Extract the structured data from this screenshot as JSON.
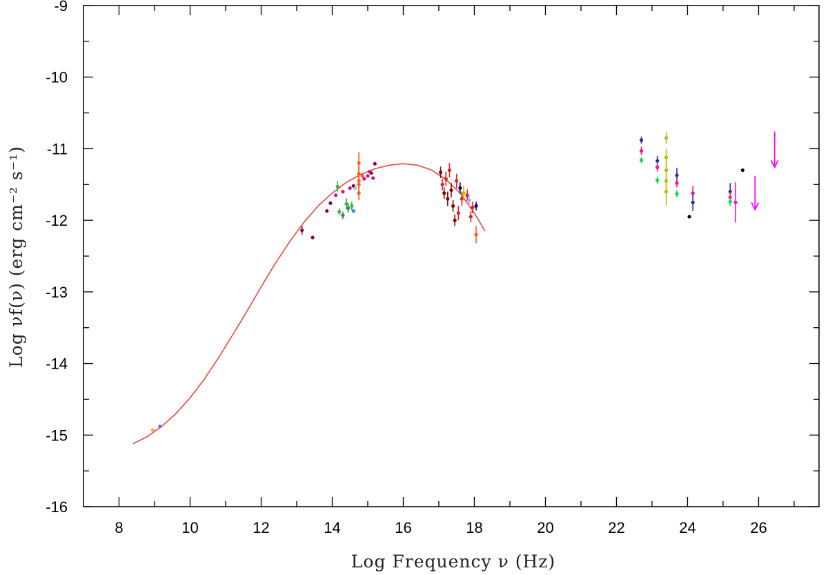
{
  "chart_data": {
    "type": "scatter",
    "xlabel": "Log Frequency ν (Hz)",
    "ylabel": "Log νf(ν) (erg cm⁻² s⁻¹)",
    "xlim": [
      7,
      27.7
    ],
    "ylim": [
      -16,
      -9
    ],
    "x_ticks": [
      "8",
      "10",
      "12",
      "14",
      "16",
      "18",
      "20",
      "22",
      "24",
      "26"
    ],
    "y_ticks": [
      "-9",
      "-10",
      "-11",
      "-12",
      "-13",
      "-14",
      "-15",
      "-16"
    ],
    "grid": false,
    "model_color": "#e8483c",
    "model_curve": [
      [
        8.4,
        -15.12
      ],
      [
        8.8,
        -15.02
      ],
      [
        9.2,
        -14.88
      ],
      [
        9.6,
        -14.7
      ],
      [
        10.0,
        -14.48
      ],
      [
        10.4,
        -14.22
      ],
      [
        10.8,
        -13.92
      ],
      [
        11.2,
        -13.6
      ],
      [
        11.6,
        -13.27
      ],
      [
        12.0,
        -12.93
      ],
      [
        12.4,
        -12.6
      ],
      [
        12.8,
        -12.3
      ],
      [
        13.2,
        -12.03
      ],
      [
        13.6,
        -11.8
      ],
      [
        14.0,
        -11.62
      ],
      [
        14.4,
        -11.47
      ],
      [
        14.8,
        -11.36
      ],
      [
        15.2,
        -11.28
      ],
      [
        15.6,
        -11.23
      ],
      [
        16.0,
        -11.21
      ],
      [
        16.4,
        -11.23
      ],
      [
        16.8,
        -11.3
      ],
      [
        17.2,
        -11.43
      ],
      [
        17.6,
        -11.62
      ],
      [
        18.0,
        -11.9
      ],
      [
        18.3,
        -12.15
      ]
    ],
    "points": [
      {
        "x": 8.95,
        "y": -14.93,
        "color": "#f4a460"
      },
      {
        "x": 9.15,
        "y": -14.88,
        "color": "#7b68ee"
      },
      {
        "x": 13.15,
        "y": -12.14,
        "err": 0.06,
        "color": "#8b004b"
      },
      {
        "x": 13.45,
        "y": -12.24,
        "color": "#8b004b"
      },
      {
        "x": 13.85,
        "y": -11.87,
        "color": "#8b004b"
      },
      {
        "x": 13.95,
        "y": -11.76,
        "color": "#8b004b"
      },
      {
        "x": 14.1,
        "y": -11.65,
        "color": "#c71585"
      },
      {
        "x": 14.3,
        "y": -11.6,
        "color": "#c71585"
      },
      {
        "x": 14.5,
        "y": -11.55,
        "color": "#c71585"
      },
      {
        "x": 14.6,
        "y": -11.52,
        "color": "#8b004b"
      },
      {
        "x": 14.9,
        "y": -11.42,
        "color": "#c71585"
      },
      {
        "x": 15.0,
        "y": -11.38,
        "color": "#c71585"
      },
      {
        "x": 15.1,
        "y": -11.34,
        "color": "#8b004b"
      },
      {
        "x": 15.2,
        "y": -11.21,
        "color": "#8b004b"
      },
      {
        "x": 15.15,
        "y": -11.41,
        "color": "#c71585"
      },
      {
        "x": 15.05,
        "y": -11.32,
        "color": "#c71585"
      },
      {
        "x": 14.15,
        "y": -11.53,
        "err": 0.08,
        "color": "#3cb34a"
      },
      {
        "x": 14.2,
        "y": -11.88,
        "err": 0.05,
        "color": "#3cb34a"
      },
      {
        "x": 14.3,
        "y": -11.93,
        "err": 0.05,
        "color": "#2e8b57"
      },
      {
        "x": 14.4,
        "y": -11.77,
        "err": 0.08,
        "color": "#3cb34a"
      },
      {
        "x": 14.45,
        "y": -11.83,
        "err": 0.06,
        "color": "#2e8b57"
      },
      {
        "x": 14.55,
        "y": -11.8,
        "err": 0.06,
        "color": "#3cb34a"
      },
      {
        "x": 14.6,
        "y": -11.87,
        "color": "#1e90ff"
      },
      {
        "x": 14.65,
        "y": -11.55,
        "color": "#87ceeb"
      },
      {
        "x": 14.75,
        "y": -11.2,
        "err": 0.15,
        "color": "#ff5a1f"
      },
      {
        "x": 14.75,
        "y": -11.35,
        "err": 0.12,
        "color": "#ff5a1f"
      },
      {
        "x": 14.75,
        "y": -11.5,
        "err": 0.12,
        "color": "#ff5a1f"
      },
      {
        "x": 14.75,
        "y": -11.62,
        "err": 0.1,
        "color": "#ff5a1f"
      },
      {
        "x": 14.75,
        "y": -11.45,
        "err": 0.1,
        "color": "#ff5a1f"
      },
      {
        "x": 14.85,
        "y": -11.38,
        "color": "#ff5a1f"
      },
      {
        "x": 17.05,
        "y": -11.33,
        "err": 0.08,
        "color": "#8b0000"
      },
      {
        "x": 17.1,
        "y": -11.5,
        "err": 0.08,
        "color": "#e02020"
      },
      {
        "x": 17.15,
        "y": -11.62,
        "err": 0.08,
        "color": "#8b0000"
      },
      {
        "x": 17.2,
        "y": -11.42,
        "err": 0.1,
        "color": "#e02020"
      },
      {
        "x": 17.25,
        "y": -11.7,
        "err": 0.1,
        "color": "#8b0000"
      },
      {
        "x": 17.3,
        "y": -11.3,
        "err": 0.1,
        "color": "#e02020"
      },
      {
        "x": 17.35,
        "y": -11.58,
        "err": 0.1,
        "color": "#8b0000"
      },
      {
        "x": 17.4,
        "y": -11.8,
        "err": 0.08,
        "color": "#8b0000"
      },
      {
        "x": 17.45,
        "y": -12.0,
        "err": 0.08,
        "color": "#8b0000"
      },
      {
        "x": 17.5,
        "y": -11.45,
        "err": 0.1,
        "color": "#e02020"
      },
      {
        "x": 17.55,
        "y": -11.9,
        "err": 0.1,
        "color": "#e02020"
      },
      {
        "x": 17.6,
        "y": -11.55,
        "err": 0.08,
        "color": "#000080"
      },
      {
        "x": 17.65,
        "y": -11.7,
        "err": 0.1,
        "color": "#e02020"
      },
      {
        "x": 17.7,
        "y": -11.62,
        "err": 0.1,
        "color": "#c0c000"
      },
      {
        "x": 17.8,
        "y": -11.65,
        "err": 0.08,
        "color": "#e02020"
      },
      {
        "x": 17.85,
        "y": -11.72,
        "err": 0.08,
        "color": "#b0a0ff"
      },
      {
        "x": 17.9,
        "y": -11.95,
        "err": 0.08,
        "color": "#e02020"
      },
      {
        "x": 17.95,
        "y": -11.82,
        "err": 0.08,
        "color": "#e02020"
      },
      {
        "x": 18.05,
        "y": -11.8,
        "err": 0.06,
        "color": "#000080"
      },
      {
        "x": 18.05,
        "y": -12.2,
        "err": 0.12,
        "color": "#ff5a1f"
      },
      {
        "x": 22.7,
        "y": -10.88,
        "err": 0.05,
        "color": "#2a2aa0"
      },
      {
        "x": 22.7,
        "y": -11.03,
        "err": 0.06,
        "color": "#ff1080"
      },
      {
        "x": 22.7,
        "y": -11.16,
        "err": 0.04,
        "color": "#00e040"
      },
      {
        "x": 23.15,
        "y": -11.17,
        "err": 0.07,
        "color": "#2a2aa0"
      },
      {
        "x": 23.15,
        "y": -11.26,
        "err": 0.06,
        "color": "#ff1080"
      },
      {
        "x": 23.15,
        "y": -11.44,
        "err": 0.05,
        "color": "#00e040"
      },
      {
        "x": 23.4,
        "y": -10.85,
        "err": 0.08,
        "color": "#b5c100"
      },
      {
        "x": 23.4,
        "y": -11.12,
        "err": 0.12,
        "color": "#b5c100"
      },
      {
        "x": 23.4,
        "y": -11.3,
        "err": 0.15,
        "color": "#b5c100"
      },
      {
        "x": 23.4,
        "y": -11.45,
        "err": 0.15,
        "color": "#b5c100"
      },
      {
        "x": 23.4,
        "y": -11.6,
        "err": 0.2,
        "color": "#b5c100"
      },
      {
        "x": 23.7,
        "y": -11.37,
        "err": 0.1,
        "color": "#2a2aa0"
      },
      {
        "x": 23.7,
        "y": -11.48,
        "err": 0.06,
        "color": "#ff1080"
      },
      {
        "x": 23.7,
        "y": -11.63,
        "err": 0.05,
        "color": "#00e040"
      },
      {
        "x": 24.05,
        "y": -11.95,
        "color": "#000000"
      },
      {
        "x": 24.15,
        "y": -11.62,
        "err": 0.1,
        "color": "#ff1080"
      },
      {
        "x": 24.15,
        "y": -11.75,
        "err": 0.12,
        "color": "#2a2aa0"
      },
      {
        "x": 25.2,
        "y": -11.6,
        "err": 0.12,
        "color": "#2a2aa0"
      },
      {
        "x": 25.2,
        "y": -11.68,
        "err": 0.08,
        "color": "#ff1080"
      },
      {
        "x": 25.2,
        "y": -11.74,
        "err": 0.06,
        "color": "#00e040"
      },
      {
        "x": 25.35,
        "y": -11.75,
        "err": 0.28,
        "color": "#ff00ff"
      },
      {
        "x": 25.55,
        "y": -11.3,
        "color": "#000000"
      }
    ],
    "upper_limits": [
      {
        "x": 25.9,
        "y_top": -11.38,
        "y_bottom": -11.85,
        "color": "#ff00ff"
      },
      {
        "x": 26.45,
        "y_top": -10.76,
        "y_bottom": -11.26,
        "color": "#ff00ff"
      }
    ]
  }
}
